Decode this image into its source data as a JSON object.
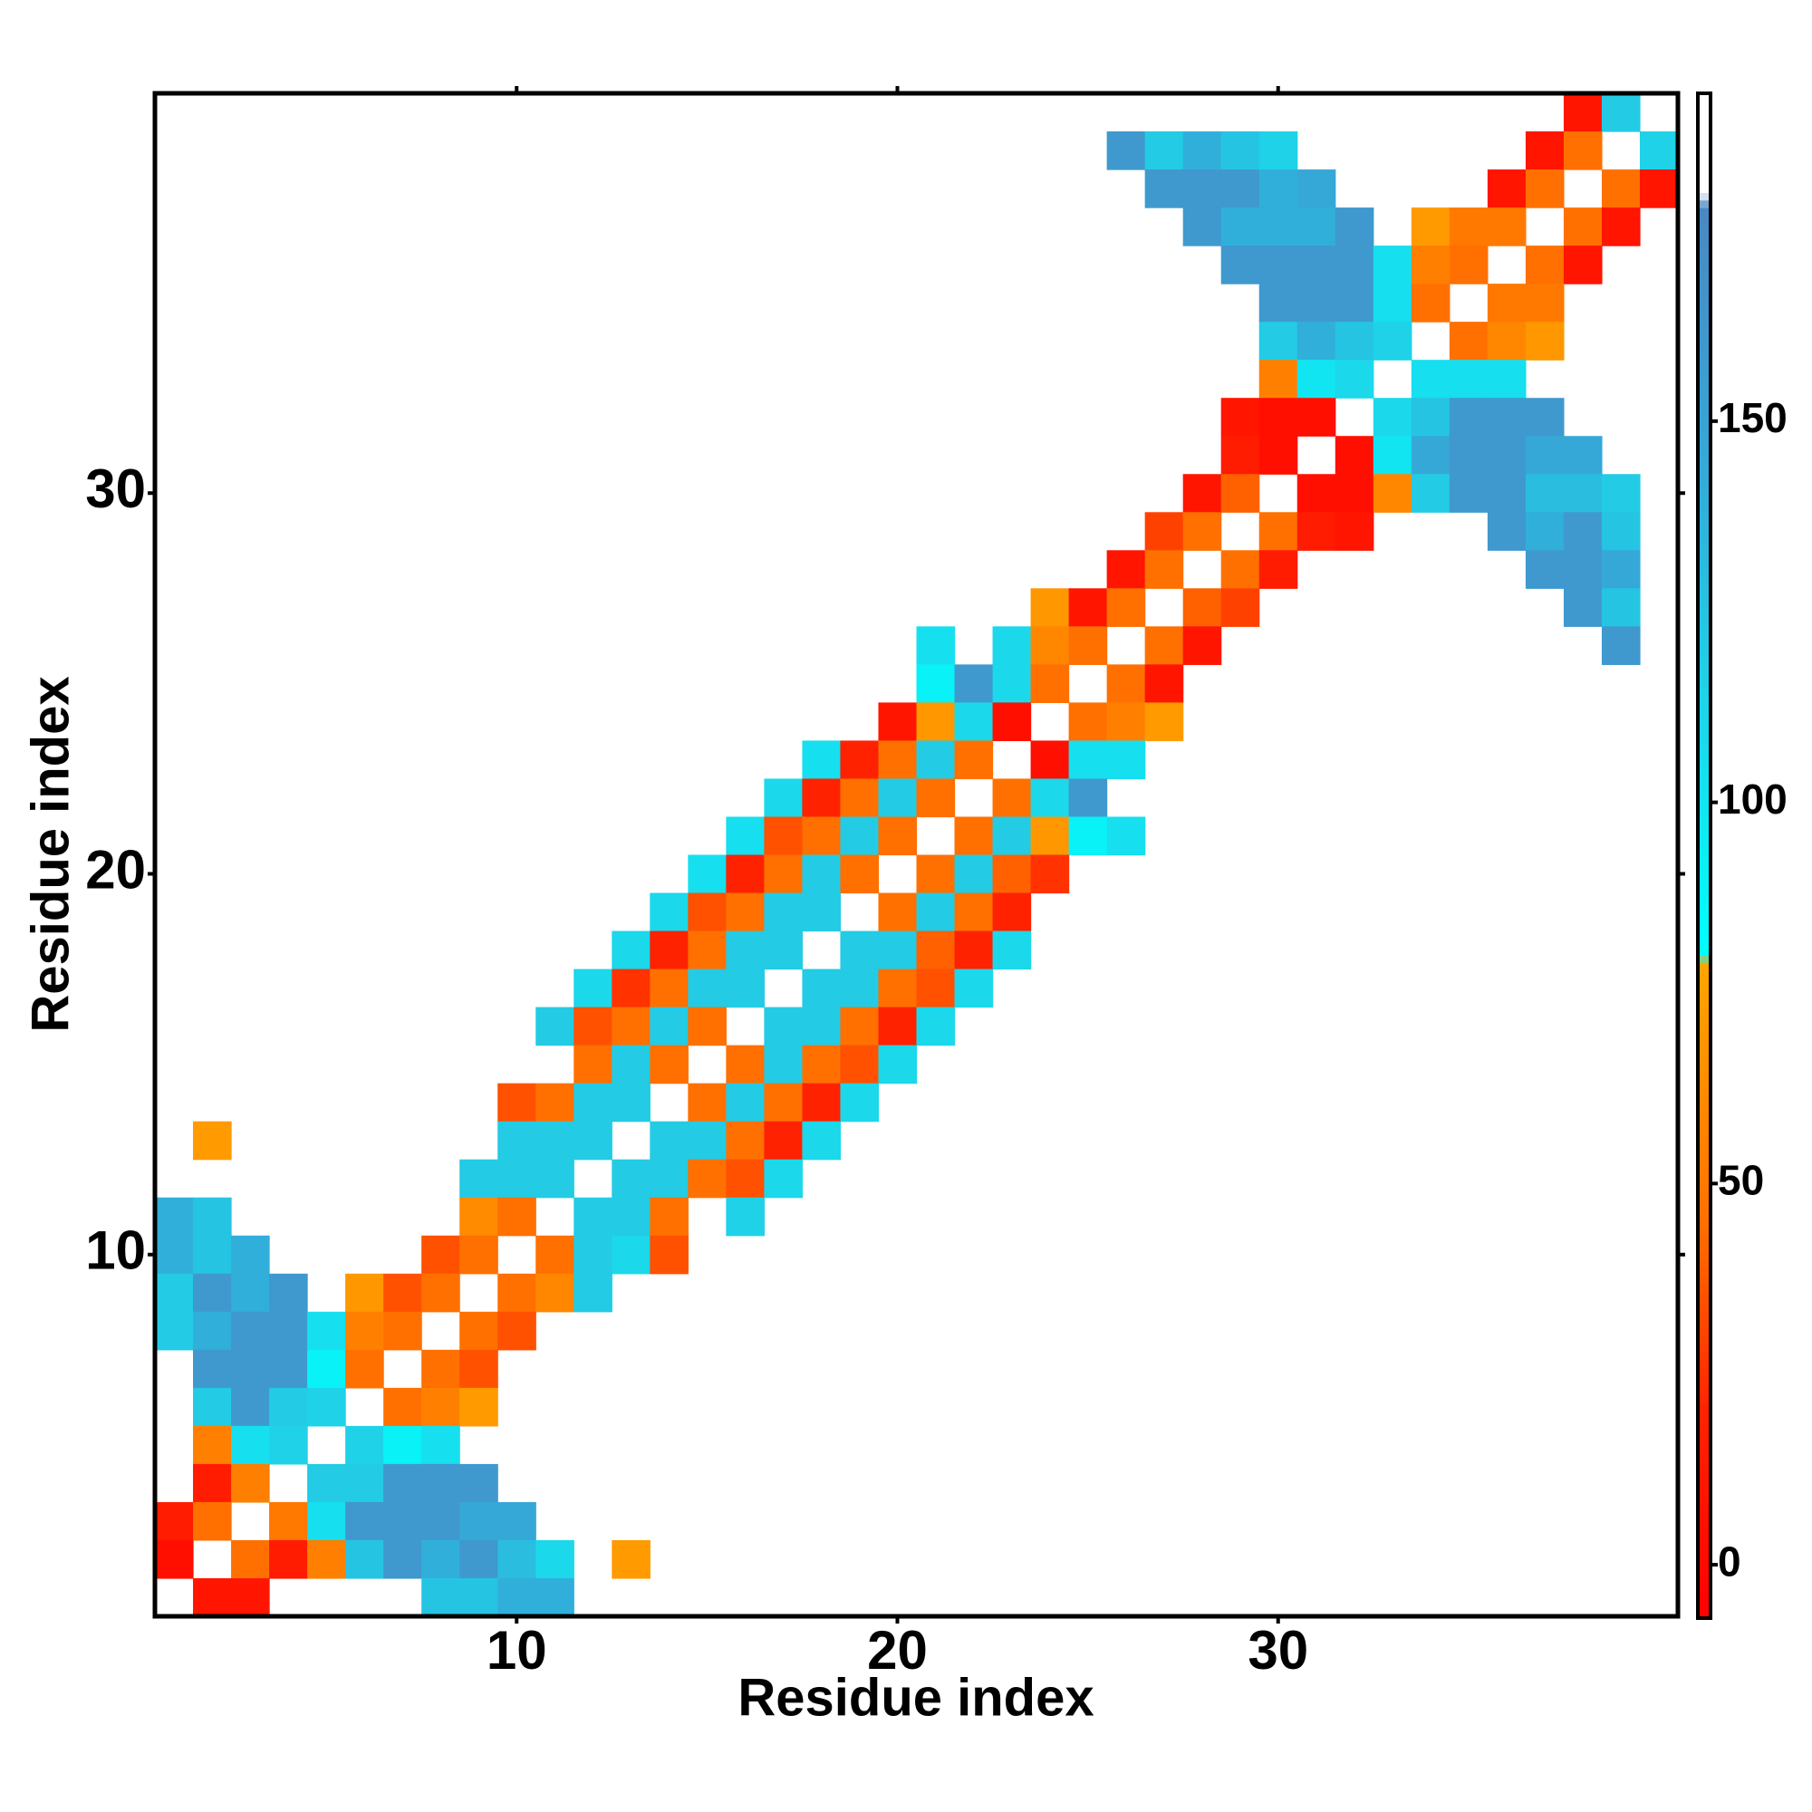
{
  "chart_data": {
    "type": "heatmap",
    "xlabel": "Residue index",
    "ylabel": "Residue index",
    "xlim": [
      0.5,
      40.5
    ],
    "ylim": [
      0.5,
      40.5
    ],
    "xticks": [
      10,
      20,
      30
    ],
    "yticks": [
      10,
      20,
      30
    ],
    "clim": [
      -7,
      193
    ],
    "cticks": [
      0,
      50,
      100,
      150
    ],
    "colorscale": [
      [
        -7,
        "#ff0000"
      ],
      [
        20,
        "#ff2200"
      ],
      [
        45,
        "#ff7000"
      ],
      [
        79,
        "#ffa500"
      ],
      [
        80,
        "#00ffff"
      ],
      [
        115,
        "#1fd2e8"
      ],
      [
        145,
        "#35a8d8"
      ],
      [
        178,
        "#4a88c2"
      ],
      [
        180,
        "#ffffff"
      ],
      [
        193,
        "#ffffff"
      ]
    ],
    "cells": [
      [
        38,
        40,
        10
      ],
      [
        39,
        40,
        120
      ],
      [
        26,
        39,
        160
      ],
      [
        27,
        39,
        120
      ],
      [
        28,
        39,
        140
      ],
      [
        29,
        39,
        125
      ],
      [
        30,
        39,
        115
      ],
      [
        37,
        39,
        10
      ],
      [
        38,
        39,
        45
      ],
      [
        40,
        39,
        115
      ],
      [
        27,
        38,
        160
      ],
      [
        28,
        38,
        160
      ],
      [
        29,
        38,
        160
      ],
      [
        30,
        38,
        140
      ],
      [
        31,
        38,
        145
      ],
      [
        36,
        38,
        10
      ],
      [
        37,
        38,
        45
      ],
      [
        39,
        38,
        45
      ],
      [
        40,
        38,
        10
      ],
      [
        28,
        37,
        160
      ],
      [
        29,
        37,
        140
      ],
      [
        30,
        37,
        140
      ],
      [
        31,
        37,
        140
      ],
      [
        32,
        37,
        160
      ],
      [
        34,
        37,
        72
      ],
      [
        35,
        37,
        50
      ],
      [
        36,
        37,
        50
      ],
      [
        38,
        37,
        45
      ],
      [
        39,
        37,
        10
      ],
      [
        29,
        36,
        160
      ],
      [
        30,
        36,
        160
      ],
      [
        31,
        36,
        160
      ],
      [
        32,
        36,
        160
      ],
      [
        33,
        36,
        105
      ],
      [
        34,
        36,
        55
      ],
      [
        35,
        36,
        45
      ],
      [
        37,
        36,
        45
      ],
      [
        38,
        36,
        10
      ],
      [
        30,
        35,
        160
      ],
      [
        31,
        35,
        160
      ],
      [
        32,
        35,
        160
      ],
      [
        33,
        35,
        105
      ],
      [
        34,
        35,
        45
      ],
      [
        36,
        35,
        50
      ],
      [
        37,
        35,
        50
      ],
      [
        30,
        34,
        120
      ],
      [
        31,
        34,
        140
      ],
      [
        32,
        34,
        125
      ],
      [
        33,
        34,
        115
      ],
      [
        35,
        34,
        45
      ],
      [
        36,
        34,
        60
      ],
      [
        37,
        34,
        70
      ],
      [
        30,
        33,
        55
      ],
      [
        31,
        33,
        100
      ],
      [
        32,
        33,
        110
      ],
      [
        34,
        33,
        105
      ],
      [
        35,
        33,
        105
      ],
      [
        36,
        33,
        105
      ],
      [
        29,
        32,
        10
      ],
      [
        30,
        32,
        5
      ],
      [
        31,
        32,
        5
      ],
      [
        33,
        32,
        110
      ],
      [
        34,
        32,
        125
      ],
      [
        35,
        32,
        160
      ],
      [
        36,
        32,
        160
      ],
      [
        37,
        32,
        160
      ],
      [
        29,
        31,
        15
      ],
      [
        30,
        31,
        5
      ],
      [
        32,
        31,
        5
      ],
      [
        33,
        31,
        100
      ],
      [
        34,
        31,
        145
      ],
      [
        35,
        31,
        160
      ],
      [
        36,
        31,
        160
      ],
      [
        37,
        31,
        145
      ],
      [
        38,
        31,
        145
      ],
      [
        28,
        30,
        10
      ],
      [
        29,
        30,
        40
      ],
      [
        31,
        30,
        5
      ],
      [
        32,
        30,
        5
      ],
      [
        33,
        30,
        60
      ],
      [
        34,
        30,
        120
      ],
      [
        35,
        30,
        160
      ],
      [
        36,
        30,
        160
      ],
      [
        37,
        30,
        130
      ],
      [
        38,
        30,
        130
      ],
      [
        39,
        30,
        120
      ],
      [
        27,
        29,
        30
      ],
      [
        28,
        29,
        45
      ],
      [
        30,
        29,
        45
      ],
      [
        31,
        29,
        15
      ],
      [
        32,
        29,
        10
      ],
      [
        36,
        29,
        160
      ],
      [
        37,
        29,
        140
      ],
      [
        38,
        29,
        160
      ],
      [
        39,
        29,
        125
      ],
      [
        26,
        28,
        10
      ],
      [
        27,
        28,
        45
      ],
      [
        29,
        28,
        45
      ],
      [
        30,
        28,
        15
      ],
      [
        37,
        28,
        160
      ],
      [
        38,
        28,
        160
      ],
      [
        39,
        28,
        145
      ],
      [
        24,
        27,
        70
      ],
      [
        25,
        27,
        10
      ],
      [
        26,
        27,
        45
      ],
      [
        28,
        27,
        40
      ],
      [
        29,
        27,
        30
      ],
      [
        38,
        27,
        160
      ],
      [
        39,
        27,
        125
      ],
      [
        21,
        26,
        105
      ],
      [
        23,
        26,
        110
      ],
      [
        24,
        26,
        60
      ],
      [
        25,
        26,
        45
      ],
      [
        27,
        26,
        45
      ],
      [
        28,
        26,
        10
      ],
      [
        39,
        26,
        160
      ],
      [
        21,
        25,
        90
      ],
      [
        22,
        25,
        160
      ],
      [
        23,
        25,
        110
      ],
      [
        24,
        25,
        45
      ],
      [
        26,
        25,
        45
      ],
      [
        27,
        25,
        10
      ],
      [
        20,
        24,
        10
      ],
      [
        21,
        24,
        70
      ],
      [
        22,
        24,
        110
      ],
      [
        23,
        24,
        5
      ],
      [
        25,
        24,
        45
      ],
      [
        26,
        24,
        55
      ],
      [
        27,
        24,
        72
      ],
      [
        18,
        23,
        105
      ],
      [
        19,
        23,
        20
      ],
      [
        20,
        23,
        45
      ],
      [
        21,
        23,
        120
      ],
      [
        22,
        23,
        45
      ],
      [
        24,
        23,
        5
      ],
      [
        25,
        23,
        105
      ],
      [
        26,
        23,
        105
      ],
      [
        17,
        22,
        110
      ],
      [
        18,
        22,
        20
      ],
      [
        19,
        22,
        45
      ],
      [
        20,
        22,
        120
      ],
      [
        21,
        22,
        45
      ],
      [
        23,
        22,
        45
      ],
      [
        24,
        22,
        110
      ],
      [
        25,
        22,
        160
      ],
      [
        16,
        21,
        105
      ],
      [
        17,
        21,
        35
      ],
      [
        18,
        21,
        45
      ],
      [
        19,
        21,
        120
      ],
      [
        20,
        21,
        45
      ],
      [
        22,
        21,
        45
      ],
      [
        23,
        21,
        120
      ],
      [
        24,
        21,
        70
      ],
      [
        25,
        21,
        90
      ],
      [
        26,
        21,
        105
      ],
      [
        15,
        20,
        105
      ],
      [
        16,
        20,
        20
      ],
      [
        17,
        20,
        45
      ],
      [
        18,
        20,
        120
      ],
      [
        19,
        20,
        45
      ],
      [
        21,
        20,
        45
      ],
      [
        22,
        20,
        120
      ],
      [
        23,
        20,
        40
      ],
      [
        24,
        20,
        25
      ],
      [
        14,
        19,
        110
      ],
      [
        15,
        19,
        35
      ],
      [
        16,
        19,
        45
      ],
      [
        17,
        19,
        120
      ],
      [
        18,
        19,
        120
      ],
      [
        20,
        19,
        45
      ],
      [
        21,
        19,
        120
      ],
      [
        22,
        19,
        45
      ],
      [
        23,
        19,
        20
      ],
      [
        13,
        18,
        110
      ],
      [
        14,
        18,
        20
      ],
      [
        15,
        18,
        45
      ],
      [
        16,
        18,
        120
      ],
      [
        17,
        18,
        120
      ],
      [
        19,
        18,
        120
      ],
      [
        20,
        18,
        120
      ],
      [
        21,
        18,
        40
      ],
      [
        22,
        18,
        20
      ],
      [
        23,
        18,
        110
      ],
      [
        12,
        17,
        110
      ],
      [
        13,
        17,
        25
      ],
      [
        14,
        17,
        45
      ],
      [
        15,
        17,
        120
      ],
      [
        16,
        17,
        120
      ],
      [
        18,
        17,
        120
      ],
      [
        19,
        17,
        120
      ],
      [
        20,
        17,
        45
      ],
      [
        21,
        17,
        35
      ],
      [
        22,
        17,
        110
      ],
      [
        11,
        16,
        120
      ],
      [
        12,
        16,
        35
      ],
      [
        13,
        16,
        45
      ],
      [
        14,
        16,
        120
      ],
      [
        15,
        16,
        45
      ],
      [
        17,
        16,
        120
      ],
      [
        18,
        16,
        120
      ],
      [
        19,
        16,
        45
      ],
      [
        20,
        16,
        20
      ],
      [
        21,
        16,
        110
      ],
      [
        12,
        15,
        45
      ],
      [
        13,
        15,
        120
      ],
      [
        14,
        15,
        45
      ],
      [
        16,
        15,
        45
      ],
      [
        17,
        15,
        120
      ],
      [
        18,
        15,
        45
      ],
      [
        19,
        15,
        35
      ],
      [
        20,
        15,
        110
      ],
      [
        10,
        14,
        35
      ],
      [
        11,
        14,
        45
      ],
      [
        12,
        14,
        120
      ],
      [
        13,
        14,
        120
      ],
      [
        15,
        14,
        45
      ],
      [
        16,
        14,
        120
      ],
      [
        17,
        14,
        45
      ],
      [
        18,
        14,
        20
      ],
      [
        19,
        14,
        110
      ],
      [
        2,
        13,
        72
      ],
      [
        10,
        13,
        120
      ],
      [
        11,
        13,
        120
      ],
      [
        12,
        13,
        120
      ],
      [
        14,
        13,
        120
      ],
      [
        15,
        13,
        120
      ],
      [
        16,
        13,
        45
      ],
      [
        17,
        13,
        20
      ],
      [
        18,
        13,
        110
      ],
      [
        9,
        12,
        120
      ],
      [
        10,
        12,
        120
      ],
      [
        11,
        12,
        120
      ],
      [
        13,
        12,
        120
      ],
      [
        14,
        12,
        120
      ],
      [
        15,
        12,
        45
      ],
      [
        16,
        12,
        35
      ],
      [
        17,
        12,
        110
      ],
      [
        1,
        11,
        140
      ],
      [
        2,
        11,
        125
      ],
      [
        9,
        11,
        62
      ],
      [
        10,
        11,
        45
      ],
      [
        12,
        11,
        120
      ],
      [
        13,
        11,
        120
      ],
      [
        14,
        11,
        45
      ],
      [
        16,
        11,
        115
      ],
      [
        1,
        10,
        140
      ],
      [
        2,
        10,
        125
      ],
      [
        3,
        10,
        140
      ],
      [
        8,
        10,
        35
      ],
      [
        9,
        10,
        45
      ],
      [
        11,
        10,
        45
      ],
      [
        12,
        10,
        120
      ],
      [
        13,
        10,
        110
      ],
      [
        14,
        10,
        35
      ],
      [
        1,
        9,
        120
      ],
      [
        2,
        9,
        160
      ],
      [
        3,
        9,
        140
      ],
      [
        4,
        9,
        160
      ],
      [
        6,
        9,
        70
      ],
      [
        7,
        9,
        35
      ],
      [
        8,
        9,
        45
      ],
      [
        10,
        9,
        45
      ],
      [
        11,
        9,
        60
      ],
      [
        12,
        9,
        120
      ],
      [
        1,
        8,
        120
      ],
      [
        2,
        8,
        140
      ],
      [
        3,
        8,
        160
      ],
      [
        4,
        8,
        160
      ],
      [
        5,
        8,
        105
      ],
      [
        6,
        8,
        55
      ],
      [
        7,
        8,
        45
      ],
      [
        9,
        8,
        45
      ],
      [
        10,
        8,
        35
      ],
      [
        2,
        7,
        160
      ],
      [
        3,
        7,
        160
      ],
      [
        4,
        7,
        160
      ],
      [
        5,
        7,
        90
      ],
      [
        6,
        7,
        45
      ],
      [
        8,
        7,
        45
      ],
      [
        9,
        7,
        35
      ],
      [
        2,
        6,
        120
      ],
      [
        3,
        6,
        160
      ],
      [
        4,
        6,
        120
      ],
      [
        5,
        6,
        115
      ],
      [
        7,
        6,
        45
      ],
      [
        8,
        6,
        55
      ],
      [
        9,
        6,
        72
      ],
      [
        2,
        5,
        55
      ],
      [
        3,
        5,
        105
      ],
      [
        4,
        5,
        115
      ],
      [
        6,
        5,
        115
      ],
      [
        7,
        5,
        90
      ],
      [
        8,
        5,
        105
      ],
      [
        2,
        4,
        15
      ],
      [
        3,
        4,
        55
      ],
      [
        5,
        4,
        120
      ],
      [
        6,
        4,
        120
      ],
      [
        7,
        4,
        160
      ],
      [
        8,
        4,
        160
      ],
      [
        9,
        4,
        160
      ],
      [
        1,
        3,
        15
      ],
      [
        2,
        3,
        45
      ],
      [
        4,
        3,
        50
      ],
      [
        5,
        3,
        105
      ],
      [
        6,
        3,
        160
      ],
      [
        7,
        3,
        160
      ],
      [
        8,
        3,
        160
      ],
      [
        9,
        3,
        145
      ],
      [
        10,
        3,
        145
      ],
      [
        1,
        2,
        5
      ],
      [
        3,
        2,
        45
      ],
      [
        4,
        2,
        15
      ],
      [
        5,
        2,
        55
      ],
      [
        6,
        2,
        125
      ],
      [
        7,
        2,
        160
      ],
      [
        8,
        2,
        140
      ],
      [
        9,
        2,
        160
      ],
      [
        10,
        2,
        130
      ],
      [
        11,
        2,
        110
      ],
      [
        13,
        2,
        72
      ],
      [
        2,
        1,
        10
      ],
      [
        3,
        1,
        10
      ],
      [
        8,
        1,
        125
      ],
      [
        9,
        1,
        125
      ],
      [
        10,
        1,
        140
      ],
      [
        11,
        1,
        140
      ]
    ]
  }
}
